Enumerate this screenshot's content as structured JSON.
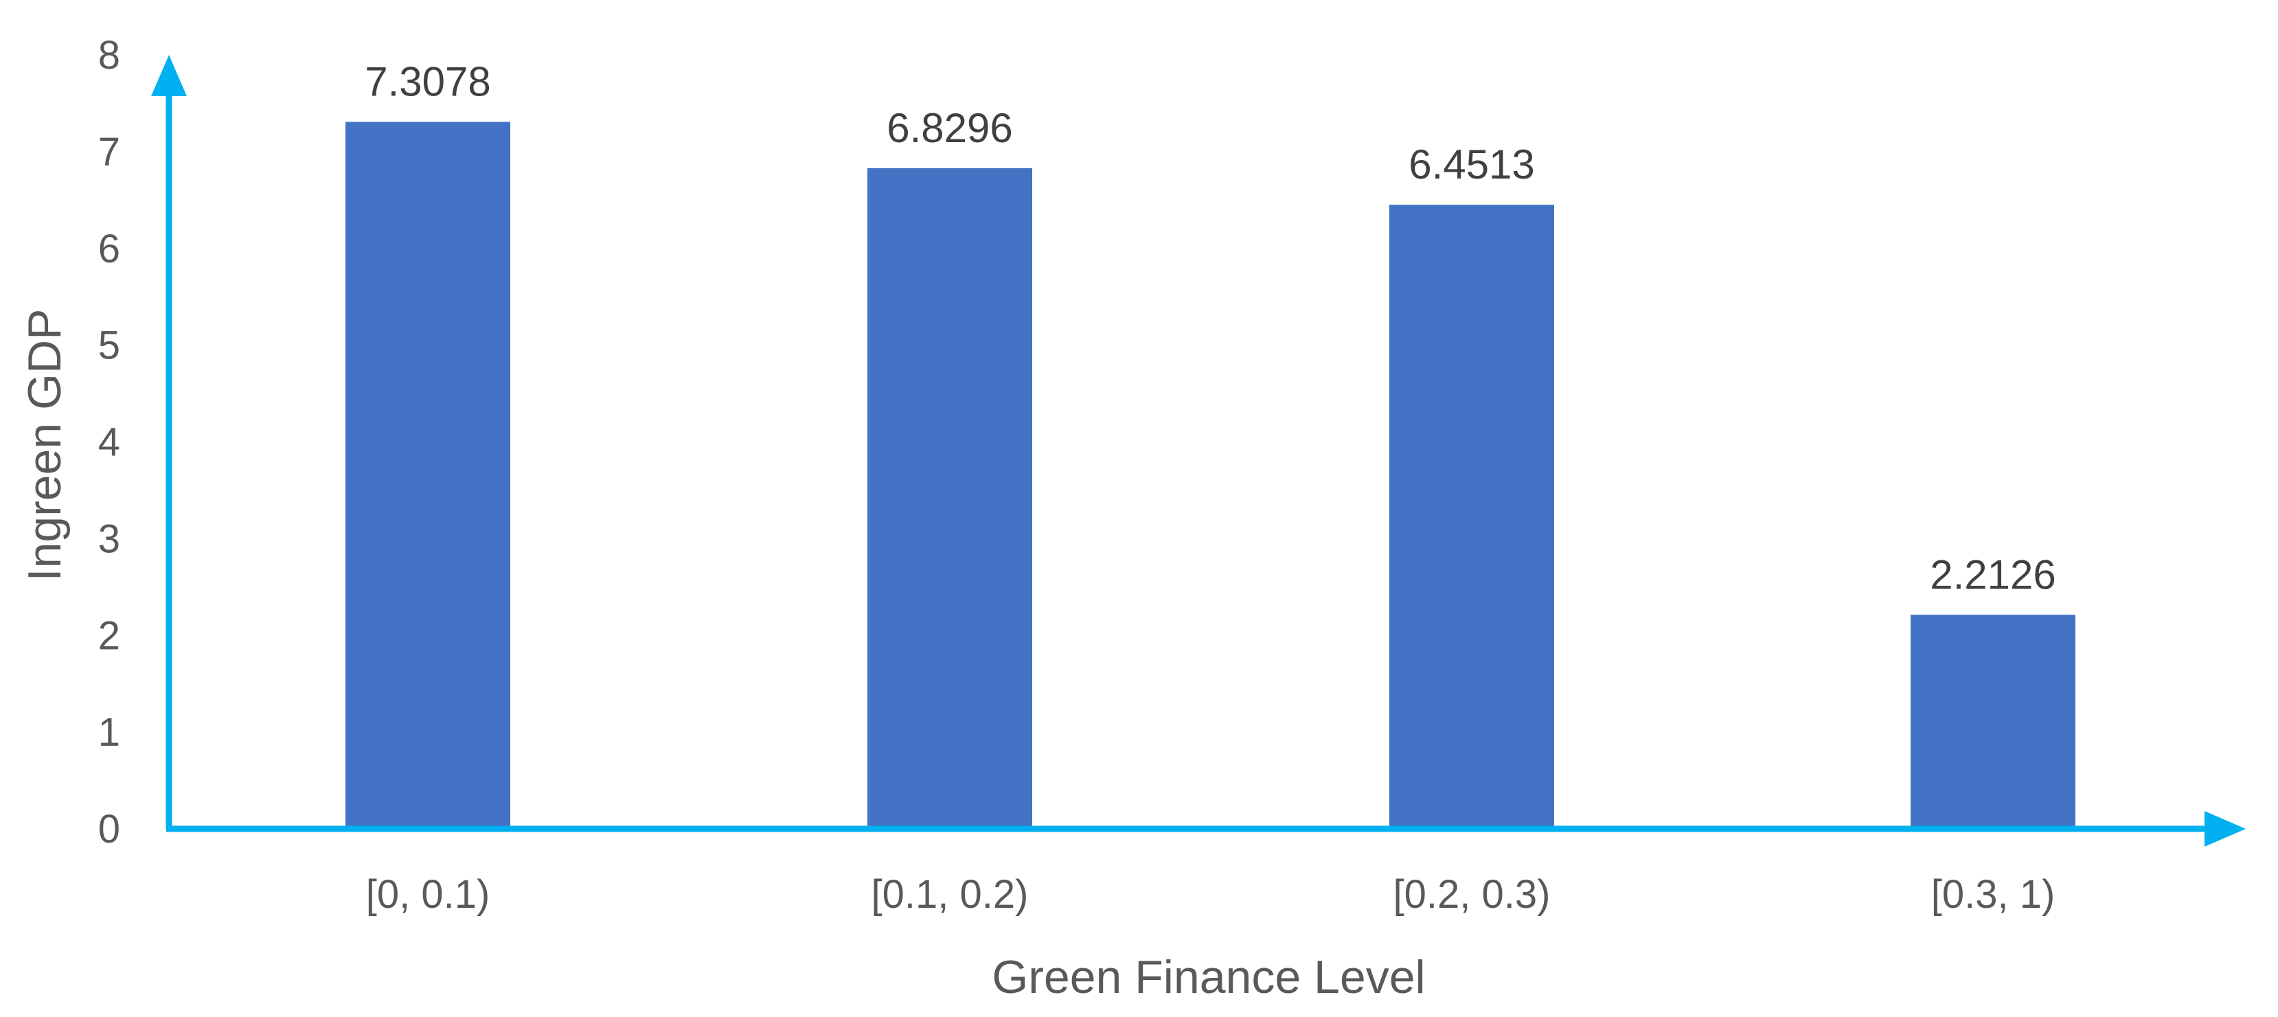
{
  "colors": {
    "bar": "#4472C4",
    "axis": "#00B0F0"
  },
  "chart_data": {
    "type": "bar",
    "categories": [
      "[0, 0.1)",
      "[0.1, 0.2)",
      "[0.2, 0.3)",
      "[0.3, 1)"
    ],
    "values": [
      7.3078,
      6.8296,
      6.4513,
      2.2126
    ],
    "data_labels": [
      "7.3078",
      "6.8296",
      "6.4513",
      "2.2126"
    ],
    "xlabel": "Green Finance Level",
    "ylabel": "Ingreen GDP",
    "ylim": [
      0,
      8
    ],
    "yticks": [
      0,
      1,
      2,
      3,
      4,
      5,
      6,
      7,
      8
    ],
    "grid": false,
    "legend": "none"
  }
}
